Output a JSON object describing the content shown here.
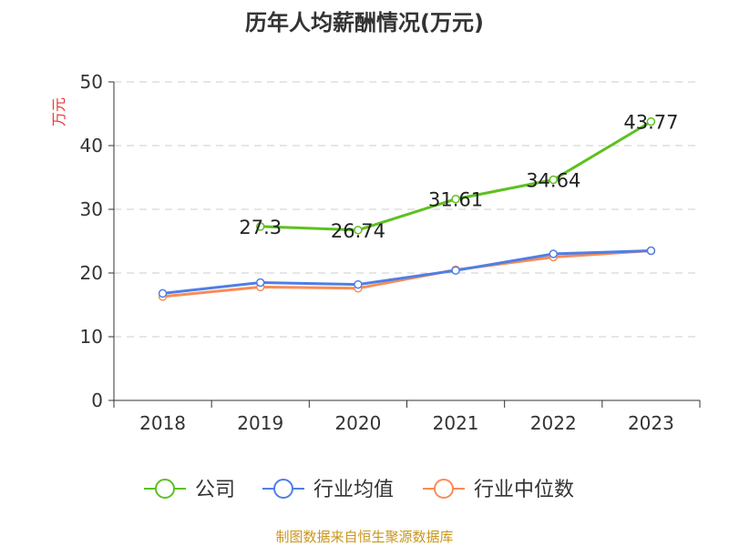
{
  "chart_data": {
    "type": "line",
    "title": "历年人均薪酬情况(万元)",
    "ylabel": "万元",
    "ylim": [
      0,
      50
    ],
    "yticks": [
      0,
      10,
      20,
      30,
      40,
      50
    ],
    "grid": true,
    "legend_position": "bottom",
    "categories": [
      "2018",
      "2019",
      "2020",
      "2021",
      "2022",
      "2023"
    ],
    "series": [
      {
        "name": "公司",
        "color": "#5cc11f",
        "values": [
          null,
          27.3,
          26.74,
          31.61,
          34.64,
          43.77
        ],
        "labels": [
          "",
          "27.3",
          "26.74",
          "31.61",
          "34.64",
          "43.77"
        ]
      },
      {
        "name": "行业均值",
        "color": "#4e7fe6",
        "values": [
          16.8,
          18.5,
          18.2,
          20.4,
          23.0,
          23.5
        ]
      },
      {
        "name": "行业中位数",
        "color": "#fb8b55",
        "values": [
          16.3,
          17.8,
          17.6,
          20.5,
          22.5,
          23.5
        ]
      }
    ]
  },
  "footer": "制图数据来自恒生聚源数据库"
}
